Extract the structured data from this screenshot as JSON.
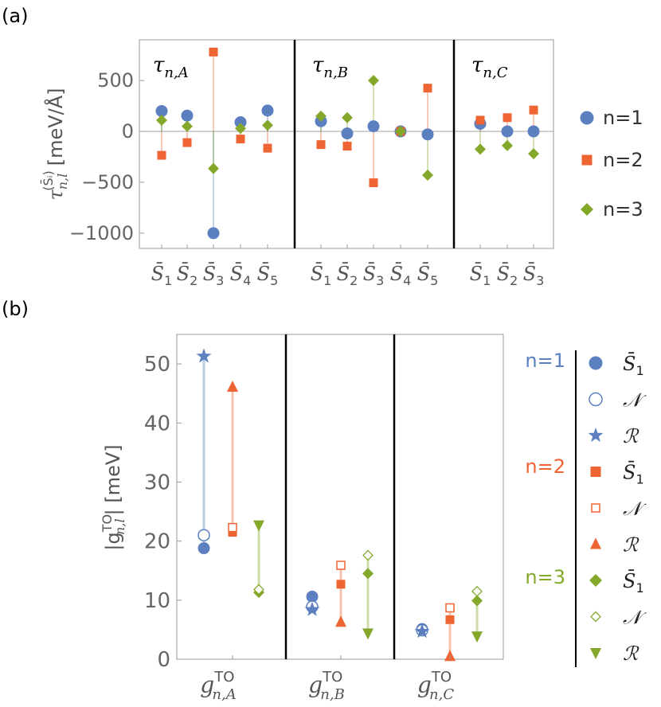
{
  "colors": {
    "n1": "#5b7fbf",
    "n2": "#ee6433",
    "n3": "#84a92a",
    "axis": "#999999",
    "zero": "#a0a0a0",
    "divider": "#000000"
  },
  "chart_data": [
    {
      "panel_label": "(a)",
      "type": "scatter",
      "ylabel_main": "τ",
      "ylabel_sub": "n,l",
      "ylabel_sup": "(S̄ᵢ)",
      "ylabel_unit": "[meV/Å]",
      "ylim": [
        -1150,
        900
      ],
      "yticks": [
        500,
        0,
        -500,
        -1000
      ],
      "ytick_labels": [
        "500",
        "0",
        "−500",
        "−1000"
      ],
      "groups": [
        {
          "title": "τ",
          "title_sub": "n,A",
          "categories": [
            "S̄1",
            "S̄2",
            "S̄3",
            "S̄4",
            "S̄5"
          ]
        },
        {
          "title": "τ",
          "title_sub": "n,B",
          "categories": [
            "S̄1",
            "S̄2",
            "S̄3",
            "S̄4",
            "S̄5"
          ]
        },
        {
          "title": "τ",
          "title_sub": "n,C",
          "categories": [
            "S̄1",
            "S̄2",
            "S̄3"
          ]
        }
      ],
      "series": [
        {
          "name": "n=1",
          "marker": "circle",
          "values": [
            [
              200,
              155,
              -1000,
              90,
              205
            ],
            [
              100,
              -20,
              50,
              0,
              -30
            ],
            [
              75,
              0,
              0
            ]
          ]
        },
        {
          "name": "n=2",
          "marker": "square",
          "values": [
            [
              -235,
              -110,
              780,
              -75,
              -165
            ],
            [
              -130,
              -145,
              -505,
              0,
              425
            ],
            [
              110,
              135,
              210
            ]
          ]
        },
        {
          "name": "n=3",
          "marker": "diamond",
          "values": [
            [
              110,
              50,
              -365,
              30,
              60
            ],
            [
              150,
              135,
              500,
              0,
              -430
            ],
            [
              -175,
              -140,
              -220
            ]
          ]
        }
      ],
      "legend": [
        "n=1",
        "n=2",
        "n=3"
      ]
    },
    {
      "panel_label": "(b)",
      "type": "scatter",
      "ylabel": "|g",
      "ylabel_sup": "TO",
      "ylabel_sub": "n,l",
      "ylabel_unit": "| [meV]",
      "ylim": [
        0,
        55
      ],
      "yticks": [
        0,
        10,
        20,
        30,
        40,
        50
      ],
      "ytick_labels": [
        "0",
        "10",
        "20",
        "30",
        "40",
        "50"
      ],
      "categories": [
        {
          "main": "g",
          "sup": "TO",
          "sub": "n,A"
        },
        {
          "main": "g",
          "sup": "TO",
          "sub": "n,B"
        },
        {
          "main": "g",
          "sup": "TO",
          "sub": "n,C"
        }
      ],
      "series": [
        {
          "name": "n=1",
          "S1": [
            18.8,
            10.6,
            5.1
          ],
          "N": [
            21.0,
            8.9,
            4.9
          ],
          "R": [
            51.3,
            8.4,
            4.7
          ]
        },
        {
          "name": "n=2",
          "S1": [
            21.5,
            12.7,
            6.7
          ],
          "N": [
            22.3,
            15.9,
            8.7
          ],
          "R": [
            46.1,
            6.3,
            0.5
          ]
        },
        {
          "name": "n=3",
          "S1": [
            11.3,
            14.5,
            9.9
          ],
          "N": [
            11.8,
            17.6,
            11.5
          ],
          "R": [
            22.7,
            4.4,
            3.9
          ]
        }
      ],
      "legend_groups": [
        "n=1",
        "n=2",
        "n=3"
      ],
      "legend_symbols": [
        "S̄",
        "𝒩",
        "ℛ"
      ],
      "legend_sub": "1"
    }
  ]
}
